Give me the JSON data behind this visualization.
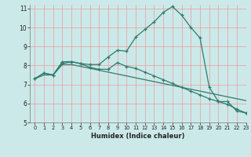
{
  "title": "",
  "xlabel": "Humidex (Indice chaleur)",
  "bg_color": "#cce9e9",
  "grid_color": "#ee9999",
  "line_color": "#2d7d6e",
  "xlim": [
    -0.5,
    23
  ],
  "ylim": [
    5,
    11.2
  ],
  "yticks": [
    5,
    6,
    7,
    8,
    9,
    10,
    11
  ],
  "xticks": [
    0,
    1,
    2,
    3,
    4,
    5,
    6,
    7,
    8,
    9,
    10,
    11,
    12,
    13,
    14,
    15,
    16,
    17,
    18,
    19,
    20,
    21,
    22,
    23
  ],
  "curve1_x": [
    0,
    1,
    2,
    3,
    4,
    5,
    6,
    7,
    8,
    9,
    10,
    11,
    12,
    13,
    14,
    15,
    16,
    17,
    18,
    19,
    20,
    21,
    22,
    23
  ],
  "curve1_y": [
    7.3,
    7.6,
    7.5,
    8.2,
    8.2,
    8.1,
    8.05,
    8.05,
    8.45,
    8.8,
    8.75,
    9.5,
    9.9,
    10.3,
    10.8,
    11.1,
    10.65,
    10.0,
    9.45,
    6.85,
    6.1,
    6.1,
    5.6,
    5.5
  ],
  "curve2_x": [
    0,
    1,
    2,
    3,
    4,
    5,
    6,
    7,
    8,
    9,
    10,
    11,
    12,
    13,
    14,
    15,
    16,
    17,
    18,
    19,
    20,
    21,
    22,
    23
  ],
  "curve2_y": [
    7.3,
    7.6,
    7.5,
    8.1,
    8.2,
    8.1,
    7.9,
    7.8,
    7.8,
    8.15,
    7.95,
    7.85,
    7.65,
    7.45,
    7.25,
    7.05,
    6.85,
    6.65,
    6.45,
    6.25,
    6.1,
    5.95,
    5.7,
    5.5
  ],
  "curve3_x": [
    0,
    1,
    2,
    3,
    4,
    5,
    6,
    7,
    8,
    9,
    10,
    11,
    12,
    13,
    14,
    15,
    16,
    17,
    18,
    19,
    20,
    21,
    22,
    23
  ],
  "curve3_y": [
    7.3,
    7.5,
    7.5,
    8.05,
    8.05,
    7.95,
    7.85,
    7.75,
    7.65,
    7.55,
    7.45,
    7.35,
    7.25,
    7.15,
    7.05,
    6.95,
    6.85,
    6.75,
    6.65,
    6.55,
    6.45,
    6.35,
    6.25,
    6.15
  ]
}
